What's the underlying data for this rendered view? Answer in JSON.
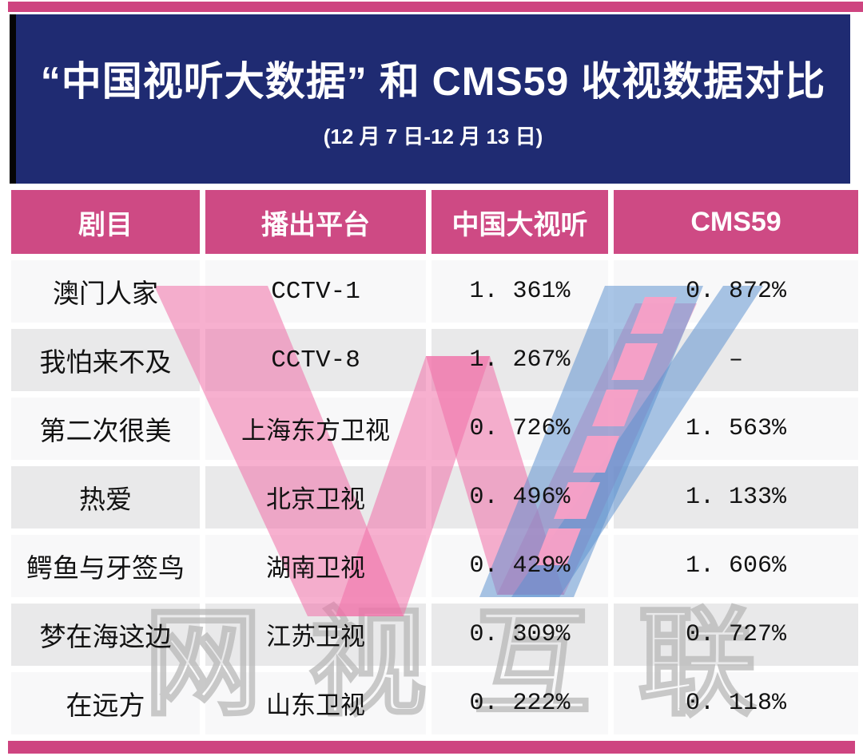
{
  "header": {
    "title": "“中国视听大数据” 和 CMS59 收视数据对比",
    "subtitle": "(12 月 7 日-12 月 13 日)"
  },
  "table": {
    "headers": [
      "剧目",
      "播出平台",
      "中国大视听",
      "CMS59"
    ],
    "rows": [
      [
        "澳门人家",
        "CCTV-1",
        "1. 361%",
        "0. 872%"
      ],
      [
        "我怕来不及",
        "CCTV-8",
        "1. 267%",
        "–"
      ],
      [
        "第二次很美",
        "上海东方卫视",
        "0. 726%",
        "1. 563%"
      ],
      [
        "热爱",
        "北京卫视",
        "0. 496%",
        "1. 133%"
      ],
      [
        "鳄鱼与牙签鸟",
        "湖南卫视",
        "0. 429%",
        "1. 606%"
      ],
      [
        "梦在海这边",
        "江苏卫视",
        "0. 309%",
        "0. 727%"
      ],
      [
        "在远方",
        "山东卫视",
        "0. 222%",
        "0. 118%"
      ]
    ]
  },
  "watermark": {
    "text": "网视互联",
    "logo": "w-film-strip-logo"
  },
  "colors": {
    "accent_pink": "#ce4480",
    "header_magenta": "#ce4a84",
    "banner_navy": "#1f2b72",
    "row_light": "#f8f8f9",
    "row_gray": "#e9e9ea",
    "watermark_pink": "#f06fa8",
    "watermark_blue": "#5b8fd0",
    "watermark_square_pink": "#f9a0c6",
    "watermark_text_gray": "#b8b8b8"
  },
  "chart_data": {
    "type": "table",
    "title": "“中国视听大数据” 和 CMS59 收视数据对比",
    "subtitle": "(12 月 7 日-12 月 13 日)",
    "columns": [
      "剧目",
      "播出平台",
      "中国大视听",
      "CMS59"
    ],
    "units": "%",
    "rows": [
      [
        "澳门人家",
        "CCTV-1",
        1.361,
        0.872
      ],
      [
        "我怕来不及",
        "CCTV-8",
        1.267,
        null
      ],
      [
        "第二次很美",
        "上海东方卫视",
        0.726,
        1.563
      ],
      [
        "热爱",
        "北京卫视",
        0.496,
        1.133
      ],
      [
        "鳄鱼与牙签鸟",
        "湖南卫视",
        0.429,
        1.606
      ],
      [
        "梦在海这边",
        "江苏卫视",
        0.309,
        0.727
      ],
      [
        "在远方",
        "山东卫视",
        0.222,
        0.118
      ]
    ],
    "note": "CMS59 value shown as dash (missing) for 我怕来不及"
  }
}
